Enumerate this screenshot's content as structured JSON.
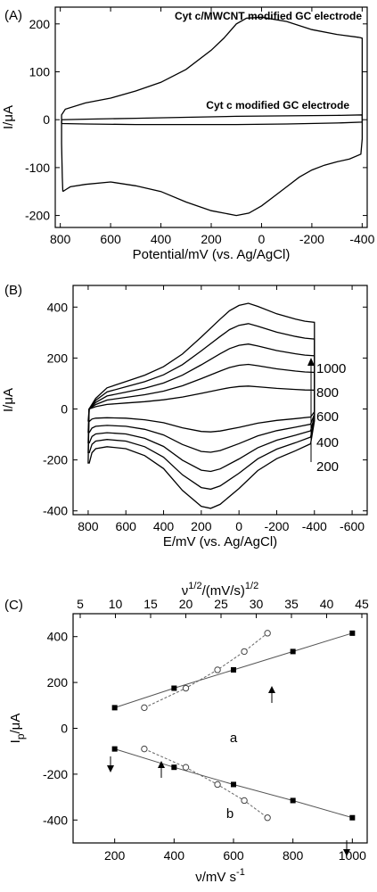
{
  "chart_data": [
    {
      "panel": "(A)",
      "type": "line",
      "xlabel": "Potential/mV (vs. Ag/AgCl)",
      "ylabel": "I/μA",
      "xlim": [
        820,
        -420
      ],
      "ylim": [
        -225,
        235
      ],
      "xticks": [
        800,
        600,
        400,
        200,
        0,
        -200,
        -400
      ],
      "yticks": [
        200,
        100,
        0,
        -100,
        -200
      ],
      "annotations": [
        "Cyt c/MWCNT modified GC electrode",
        "Cyt c modified GC electrode"
      ],
      "series": [
        {
          "label_ref": 0,
          "x": [
            790,
            775,
            760,
            700,
            600,
            500,
            400,
            300,
            200,
            100,
            50,
            0,
            -50,
            -100,
            -150,
            -200,
            -250,
            -300,
            -350,
            -395,
            -400,
            -400,
            -395,
            -385,
            -300,
            -200,
            -100,
            0,
            60,
            100,
            150,
            200,
            300,
            400,
            500,
            600,
            700,
            780,
            795,
            795,
            792,
            790
          ],
          "y": [
            -150,
            -145,
            -140,
            -135,
            -130,
            -138,
            -150,
            -172,
            -190,
            -200,
            -195,
            -180,
            -160,
            -140,
            -120,
            -105,
            -95,
            -88,
            -82,
            -72,
            -40,
            170,
            171,
            172,
            178,
            188,
            205,
            214,
            212,
            200,
            170,
            145,
            105,
            78,
            60,
            45,
            35,
            22,
            10,
            -50,
            -120,
            -150
          ]
        },
        {
          "label_ref": 1,
          "x": [
            795,
            700,
            500,
            300,
            100,
            -100,
            -300,
            -400,
            -400,
            -300,
            -100,
            100,
            300,
            500,
            700,
            795,
            795
          ],
          "y": [
            -8,
            -9,
            -10,
            -10,
            -10,
            -9,
            -7,
            -5,
            10,
            9,
            8,
            7,
            5,
            3,
            1,
            0,
            -8
          ]
        }
      ]
    },
    {
      "panel": "(B)",
      "type": "line",
      "xlabel": "E/mV (vs. Ag/AgCl)",
      "ylabel": "I/μA",
      "xlim": [
        880,
        -680
      ],
      "ylim": [
        -415,
        485
      ],
      "xticks": [
        800,
        600,
        400,
        200,
        0,
        -200,
        -400,
        -600
      ],
      "yticks": [
        400,
        200,
        0,
        -200,
        -400
      ],
      "scan_rate_labels": [
        "1000",
        "800",
        "600",
        "400",
        "200"
      ],
      "peaks": {
        "anodic": [
          90,
          175,
          255,
          335,
          415
        ],
        "cathodic": [
          -90,
          -170,
          -245,
          -315,
          -390
        ]
      }
    },
    {
      "panel": "(C)",
      "type": "scatter",
      "xlabel": "ν/mV s",
      "xlabel_sup": "-1",
      "ylabel": "I",
      "ylabel_sub": "p",
      "ylabel_unit": "/μA",
      "x2label": "ν",
      "x2label_sup1": "1/2",
      "x2label_mid": "/(mV/s)",
      "x2label_sup2": "1/2",
      "xlim": [
        60,
        1050
      ],
      "x2lim": [
        5,
        45
      ],
      "ylim": [
        -500,
        500
      ],
      "xticks": [
        200,
        400,
        600,
        800,
        1000
      ],
      "x2ticks": [
        5,
        10,
        15,
        20,
        25,
        30,
        35,
        40,
        45
      ],
      "yticks": [
        400,
        200,
        0,
        -200,
        -400
      ],
      "labels": [
        "a",
        "b"
      ],
      "series": [
        {
          "label_ref": 0,
          "marker": "square",
          "axis": "bottom",
          "x": [
            200,
            400,
            600,
            800,
            1000
          ],
          "y": [
            90,
            175,
            255,
            335,
            415
          ]
        },
        {
          "label_ref": 1,
          "marker": "square",
          "axis": "bottom",
          "x": [
            200,
            400,
            600,
            800,
            1000
          ],
          "y": [
            -90,
            -170,
            -245,
            -315,
            -390
          ]
        },
        {
          "label_ref": 0,
          "marker": "circle",
          "axis": "top",
          "x": [
            14.1,
            20,
            24.5,
            28.3,
            31.6
          ],
          "y": [
            90,
            175,
            255,
            335,
            415
          ]
        },
        {
          "label_ref": 1,
          "marker": "circle",
          "axis": "top",
          "x": [
            14.1,
            20,
            24.5,
            28.3,
            31.6
          ],
          "y": [
            -90,
            -170,
            -245,
            -315,
            -390
          ]
        }
      ]
    }
  ]
}
